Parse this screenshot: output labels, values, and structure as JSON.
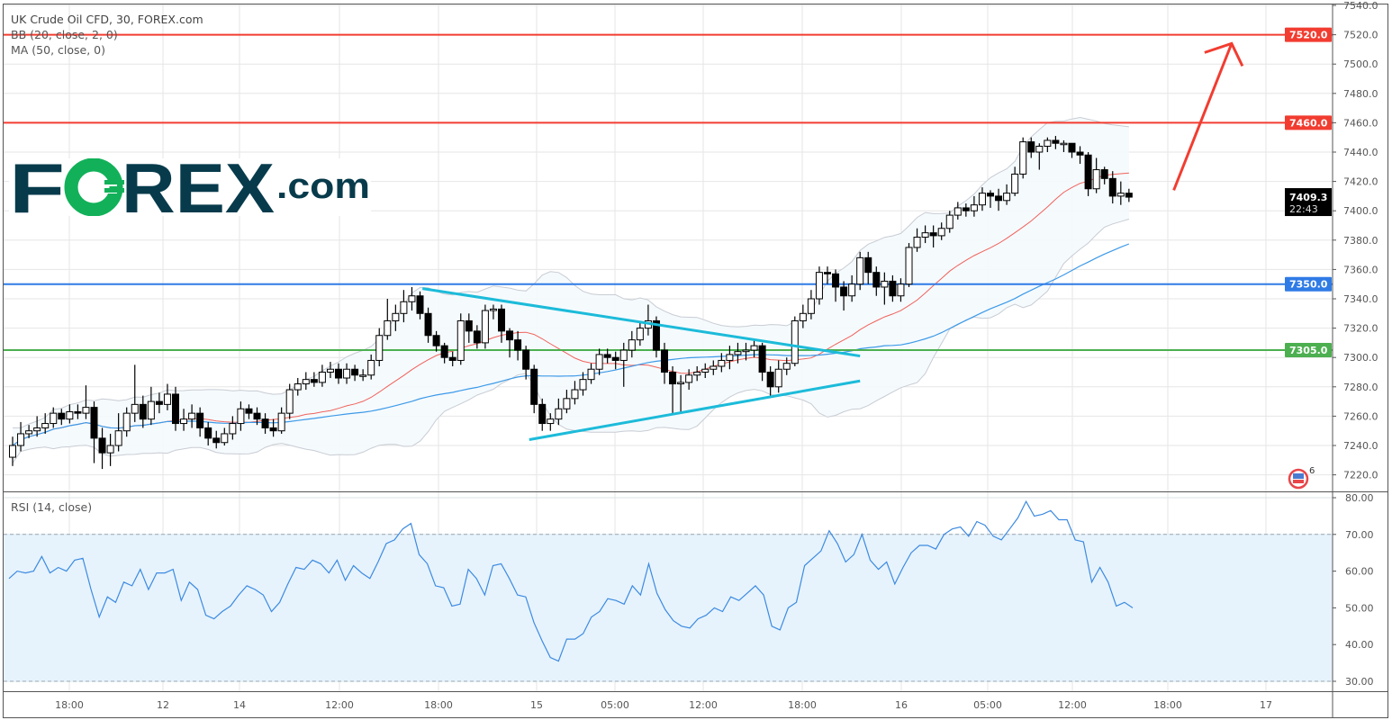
{
  "header": {
    "title": "UK Crude Oil CFD, 30, FOREX.com",
    "indicators": [
      "BB (20, close, 2, 0)",
      "MA (50, close, 0)"
    ]
  },
  "logo": {
    "text": "FOREX.com"
  },
  "rsi_pane": {
    "title": "RSI (14, close)"
  },
  "last_price": {
    "value": "7409.3",
    "countdown": "22:43"
  },
  "events_badge": {
    "icon": "us-flag-event-icon",
    "count": "6"
  },
  "colors": {
    "up_body": "#ffffff",
    "down_body": "#000000",
    "bb_mid": "#f0625b",
    "ma50": "#3d9ae8",
    "bb_band": "#c8ccd4",
    "rsi_line": "#3d8ae0",
    "rsi_fill": "#e6f3fd",
    "resistance": "#f23c30",
    "support_blue": "#2f7be6",
    "support_green": "#4caf50",
    "trendline": "#1cbbd9",
    "arrow": "#f23c30"
  },
  "chart_data": [
    {
      "type": "candlestick",
      "title": "UK Crude Oil CFD, 30, FOREX.com",
      "ylim": [
        7210,
        7545
      ],
      "y_ticks": [
        "7540.0",
        "7520.0",
        "7500.0",
        "7480.0",
        "7460.0",
        "7440.0",
        "7420.0",
        "7400.0",
        "7380.0",
        "7360.0",
        "7340.0",
        "7320.0",
        "7300.0",
        "7280.0",
        "7260.0",
        "7240.0",
        "7220.0"
      ],
      "x_ticks": [
        "18:00",
        "12",
        "14",
        "12:00",
        "18:00",
        "15",
        "05:00",
        "12:00",
        "18:00",
        "16",
        "05:00",
        "12:00",
        "18:00",
        "17"
      ],
      "grid": true,
      "indicators": [
        "BB (20, close, 2, 0)",
        "MA (50, close, 0)"
      ],
      "candles_ohlc": [
        [
          7232,
          7246,
          7226,
          7240
        ],
        [
          7240,
          7256,
          7236,
          7248
        ],
        [
          7248,
          7254,
          7245,
          7250
        ],
        [
          7250,
          7260,
          7246,
          7252
        ],
        [
          7252,
          7262,
          7248,
          7255
        ],
        [
          7255,
          7266,
          7252,
          7262
        ],
        [
          7262,
          7265,
          7254,
          7258
        ],
        [
          7258,
          7268,
          7255,
          7263
        ],
        [
          7263,
          7268,
          7258,
          7262
        ],
        [
          7262,
          7281,
          7258,
          7266
        ],
        [
          7266,
          7270,
          7228,
          7245
        ],
        [
          7245,
          7252,
          7224,
          7235
        ],
        [
          7235,
          7248,
          7226,
          7240
        ],
        [
          7240,
          7262,
          7236,
          7250
        ],
        [
          7250,
          7266,
          7246,
          7262
        ],
        [
          7262,
          7295,
          7256,
          7268
        ],
        [
          7268,
          7274,
          7252,
          7258
        ],
        [
          7258,
          7280,
          7254,
          7270
        ],
        [
          7270,
          7276,
          7262,
          7268
        ],
        [
          7268,
          7282,
          7264,
          7275
        ],
        [
          7275,
          7280,
          7250,
          7255
        ],
        [
          7255,
          7265,
          7250,
          7258
        ],
        [
          7258,
          7268,
          7252,
          7262
        ],
        [
          7262,
          7266,
          7246,
          7252
        ],
        [
          7252,
          7256,
          7240,
          7245
        ],
        [
          7245,
          7250,
          7238,
          7242
        ],
        [
          7242,
          7252,
          7240,
          7248
        ],
        [
          7248,
          7260,
          7244,
          7255
        ],
        [
          7255,
          7270,
          7250,
          7265
        ],
        [
          7265,
          7268,
          7258,
          7262
        ],
        [
          7262,
          7266,
          7254,
          7258
        ],
        [
          7258,
          7262,
          7248,
          7252
        ],
        [
          7252,
          7258,
          7246,
          7250
        ],
        [
          7250,
          7266,
          7248,
          7262
        ],
        [
          7262,
          7282,
          7258,
          7278
        ],
        [
          7278,
          7286,
          7274,
          7282
        ],
        [
          7282,
          7290,
          7278,
          7285
        ],
        [
          7285,
          7290,
          7280,
          7283
        ],
        [
          7283,
          7295,
          7280,
          7290
        ],
        [
          7290,
          7297,
          7286,
          7292
        ],
        [
          7292,
          7296,
          7282,
          7286
        ],
        [
          7286,
          7296,
          7282,
          7292
        ],
        [
          7292,
          7295,
          7284,
          7288
        ],
        [
          7288,
          7292,
          7284,
          7288
        ],
        [
          7288,
          7302,
          7285,
          7298
        ],
        [
          7298,
          7320,
          7294,
          7315
        ],
        [
          7315,
          7340,
          7312,
          7325
        ],
        [
          7325,
          7336,
          7318,
          7330
        ],
        [
          7330,
          7346,
          7324,
          7338
        ],
        [
          7338,
          7348,
          7332,
          7342
        ],
        [
          7342,
          7345,
          7326,
          7330
        ],
        [
          7330,
          7334,
          7310,
          7315
        ],
        [
          7315,
          7318,
          7304,
          7308
        ],
        [
          7308,
          7310,
          7296,
          7300
        ],
        [
          7300,
          7304,
          7294,
          7298
        ],
        [
          7298,
          7330,
          7295,
          7325
        ],
        [
          7325,
          7330,
          7310,
          7318
        ],
        [
          7318,
          7322,
          7306,
          7310
        ],
        [
          7310,
          7336,
          7306,
          7332
        ],
        [
          7332,
          7336,
          7326,
          7333
        ],
        [
          7333,
          7336,
          7310,
          7318
        ],
        [
          7318,
          7320,
          7300,
          7312
        ],
        [
          7312,
          7318,
          7298,
          7305
        ],
        [
          7305,
          7308,
          7285,
          7292
        ],
        [
          7292,
          7295,
          7262,
          7268
        ],
        [
          7268,
          7272,
          7250,
          7255
        ],
        [
          7255,
          7262,
          7250,
          7258
        ],
        [
          7258,
          7272,
          7254,
          7265
        ],
        [
          7265,
          7278,
          7262,
          7272
        ],
        [
          7272,
          7284,
          7268,
          7278
        ],
        [
          7278,
          7290,
          7274,
          7285
        ],
        [
          7285,
          7296,
          7282,
          7292
        ],
        [
          7292,
          7306,
          7288,
          7302
        ],
        [
          7302,
          7306,
          7296,
          7300
        ],
        [
          7300,
          7304,
          7292,
          7298
        ],
        [
          7298,
          7310,
          7280,
          7305
        ],
        [
          7305,
          7318,
          7300,
          7312
        ],
        [
          7312,
          7324,
          7308,
          7320
        ],
        [
          7320,
          7336,
          7315,
          7325
        ],
        [
          7325,
          7328,
          7300,
          7305
        ],
        [
          7305,
          7310,
          7282,
          7290
        ],
        [
          7290,
          7294,
          7262,
          7282
        ],
        [
          7282,
          7288,
          7262,
          7283
        ],
        [
          7283,
          7292,
          7278,
          7288
        ],
        [
          7288,
          7294,
          7284,
          7290
        ],
        [
          7290,
          7296,
          7286,
          7292
        ],
        [
          7292,
          7298,
          7288,
          7294
        ],
        [
          7294,
          7303,
          7290,
          7298
        ],
        [
          7298,
          7308,
          7292,
          7302
        ],
        [
          7302,
          7310,
          7296,
          7304
        ],
        [
          7304,
          7310,
          7298,
          7305
        ],
        [
          7305,
          7312,
          7300,
          7308
        ],
        [
          7308,
          7310,
          7284,
          7290
        ],
        [
          7290,
          7294,
          7274,
          7280
        ],
        [
          7280,
          7298,
          7276,
          7292
        ],
        [
          7292,
          7300,
          7288,
          7296
        ],
        [
          7296,
          7328,
          7294,
          7325
        ],
        [
          7325,
          7336,
          7320,
          7330
        ],
        [
          7330,
          7346,
          7326,
          7340
        ],
        [
          7340,
          7362,
          7336,
          7358
        ],
        [
          7358,
          7362,
          7350,
          7357
        ],
        [
          7357,
          7360,
          7338,
          7348
        ],
        [
          7348,
          7352,
          7332,
          7342
        ],
        [
          7342,
          7356,
          7338,
          7350
        ],
        [
          7350,
          7372,
          7346,
          7368
        ],
        [
          7368,
          7372,
          7350,
          7358
        ],
        [
          7358,
          7362,
          7342,
          7348
        ],
        [
          7348,
          7358,
          7336,
          7352
        ],
        [
          7352,
          7356,
          7338,
          7342
        ],
        [
          7342,
          7354,
          7338,
          7350
        ],
        [
          7350,
          7378,
          7348,
          7375
        ],
        [
          7375,
          7388,
          7372,
          7382
        ],
        [
          7382,
          7390,
          7378,
          7385
        ],
        [
          7385,
          7390,
          7375,
          7383
        ],
        [
          7383,
          7392,
          7380,
          7388
        ],
        [
          7388,
          7400,
          7385,
          7397
        ],
        [
          7397,
          7406,
          7394,
          7402
        ],
        [
          7402,
          7405,
          7396,
          7400
        ],
        [
          7400,
          7410,
          7396,
          7404
        ],
        [
          7404,
          7416,
          7400,
          7412
        ],
        [
          7412,
          7414,
          7402,
          7410
        ],
        [
          7410,
          7415,
          7400,
          7407
        ],
        [
          7407,
          7418,
          7404,
          7412
        ],
        [
          7412,
          7430,
          7410,
          7425
        ],
        [
          7425,
          7450,
          7422,
          7447
        ],
        [
          7447,
          7450,
          7436,
          7440
        ],
        [
          7440,
          7446,
          7428,
          7444
        ],
        [
          7444,
          7450,
          7440,
          7448
        ],
        [
          7448,
          7451,
          7442,
          7446
        ],
        [
          7446,
          7448,
          7440,
          7446
        ],
        [
          7446,
          7446,
          7436,
          7440
        ],
        [
          7440,
          7444,
          7432,
          7438
        ],
        [
          7438,
          7440,
          7410,
          7415
        ],
        [
          7415,
          7436,
          7412,
          7428
        ],
        [
          7428,
          7430,
          7418,
          7422
        ],
        [
          7422,
          7427,
          7405,
          7410
        ],
        [
          7410,
          7420,
          7404,
          7412
        ],
        [
          7412,
          7415,
          7406,
          7409.3
        ]
      ],
      "horizontal_levels": [
        {
          "price": 7520.0,
          "label": "7520.0",
          "color": "#f23c30"
        },
        {
          "price": 7460.0,
          "label": "7460.0",
          "color": "#f23c30"
        },
        {
          "price": 7350.0,
          "label": "7350.0",
          "color": "#2f7be6"
        },
        {
          "price": 7305.0,
          "label": "7305.0",
          "color": "#4caf50"
        }
      ],
      "trendlines": [
        {
          "from": {
            "bar": 50.3,
            "price": 7347
          },
          "to": {
            "bar": 104,
            "price": 7301
          }
        },
        {
          "from": {
            "bar": 63.4,
            "price": 7244
          },
          "to": {
            "bar": 104,
            "price": 7284
          }
        }
      ],
      "arrow": {
        "from": {
          "bar": 142.5,
          "price": 7414
        },
        "to": {
          "bar": 149.6,
          "price": 7514
        }
      }
    },
    {
      "type": "line",
      "title": "RSI (14, close)",
      "ylim": [
        27,
        82
      ],
      "y_ticks": [
        "80.00",
        "70.00",
        "60.00",
        "50.00",
        "40.00",
        "30.00"
      ],
      "bands": {
        "upper": 70,
        "lower": 30
      },
      "values": [
        58,
        60,
        59.5,
        60,
        64,
        59.5,
        61,
        60,
        63,
        63.5,
        55,
        47.5,
        53,
        51.5,
        57,
        56,
        60.5,
        55,
        59.5,
        59.5,
        60.5,
        52,
        57,
        55,
        48,
        47,
        49,
        50.5,
        53.5,
        56,
        55,
        53.5,
        49,
        51.5,
        56.5,
        61,
        60.5,
        63,
        62,
        59.5,
        63,
        57.5,
        61.5,
        59.5,
        58,
        62.5,
        67.5,
        68.5,
        71.5,
        73,
        64.5,
        62,
        56,
        55.5,
        50.5,
        51,
        60.5,
        58,
        53.5,
        61.5,
        62,
        58,
        53.5,
        53,
        46,
        41,
        36.5,
        35.5,
        41.5,
        41.5,
        43,
        47.5,
        49,
        52.5,
        52,
        51,
        56,
        53.5,
        62,
        54,
        49.5,
        46.5,
        45,
        44.5,
        47,
        48,
        50,
        49,
        53,
        52,
        54,
        56,
        53.5,
        45,
        44,
        50,
        51.5,
        61.5,
        63.5,
        65.5,
        71,
        67.5,
        62.5,
        64.5,
        70,
        63,
        60.5,
        62.5,
        56.5,
        61,
        65,
        67,
        67,
        66,
        70,
        71.5,
        72,
        69.5,
        73.5,
        72.5,
        69.5,
        68.5,
        71.5,
        74.5,
        79,
        75,
        75.5,
        76.5,
        74,
        74,
        68.5,
        68,
        57,
        61,
        57,
        50.5,
        51.5,
        50
      ]
    }
  ]
}
